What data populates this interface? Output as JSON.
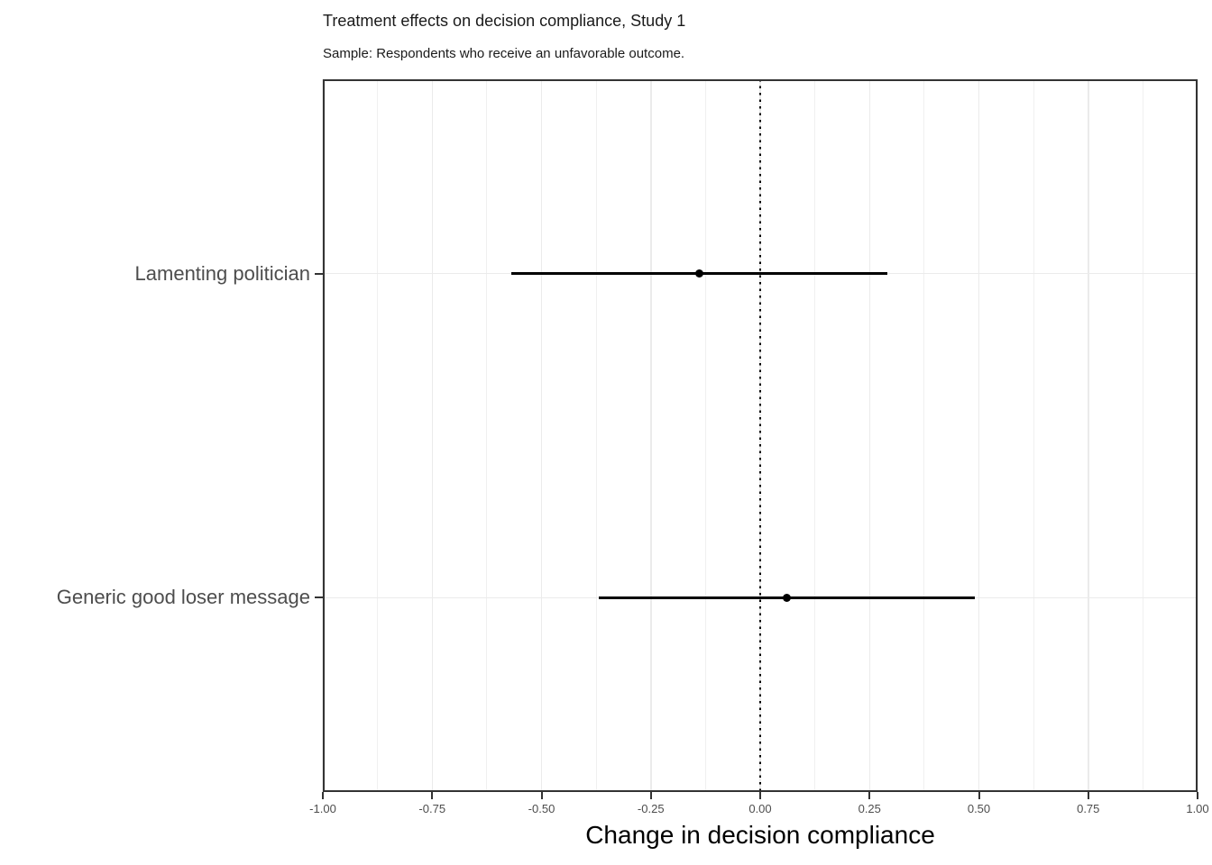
{
  "chart_data": {
    "type": "pointrange",
    "orientation": "horizontal",
    "title": "Treatment effects on decision compliance, Study 1",
    "subtitle": "Sample: Respondents who receive an unfavorable outcome.",
    "xlabel": "Change in decision compliance",
    "ylabel": "",
    "xlim": [
      -1.0,
      1.0
    ],
    "xticks": [
      -1.0,
      -0.75,
      -0.5,
      -0.25,
      0.0,
      0.25,
      0.5,
      0.75,
      1.0
    ],
    "xtick_labels": [
      "-1.00",
      "-0.75",
      "-0.50",
      "-0.25",
      "0.00",
      "0.25",
      "0.50",
      "0.75",
      "1.00"
    ],
    "minor_ticks": [
      -0.875,
      -0.625,
      -0.375,
      -0.125,
      0.125,
      0.375,
      0.625,
      0.875
    ],
    "reference_line": {
      "x": 0.0,
      "style": "dotted",
      "color": "#000000"
    },
    "series": [
      {
        "label": "Lamenting politician",
        "estimate": -0.14,
        "ci_low": -0.57,
        "ci_high": 0.29
      },
      {
        "label": "Generic good loser message",
        "estimate": 0.06,
        "ci_low": -0.37,
        "ci_high": 0.49
      }
    ],
    "grid": true,
    "legend": false,
    "colors": {
      "background": "#ffffff",
      "point": "#000000",
      "interval": "#000000",
      "grid_major": "#ebebeb",
      "grid_minor": "#f0f0f0",
      "panel_border": "#333333",
      "tick_mark": "#333333",
      "axis_text": "#4d4d4d",
      "title_text": "#1a1a1a"
    }
  }
}
